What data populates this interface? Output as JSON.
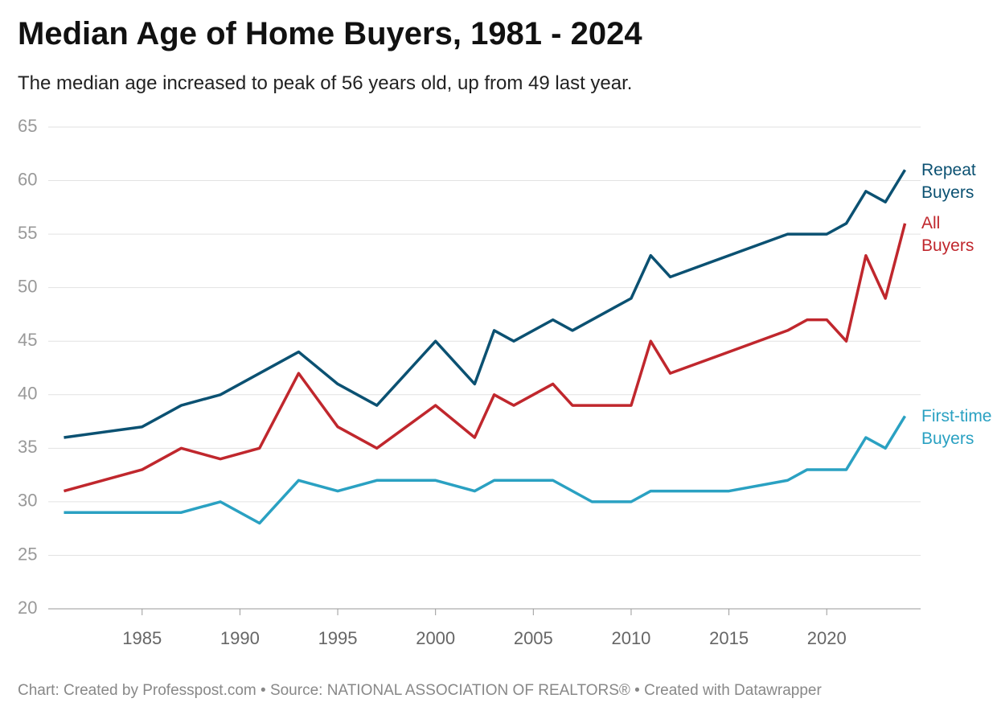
{
  "chart_data": {
    "type": "line",
    "title": "Median Age of Home Buyers, 1981 - 2024",
    "subtitle": "The median age increased to peak of 56 years old, up from 49 last year.",
    "source": "Chart: Created by Professpost.com  • Source: NATIONAL ASSOCIATION OF REALTORS® • Created with Datawrapper",
    "xlim": [
      1980.2,
      2024.8
    ],
    "xticks": [
      1985,
      1990,
      1995,
      2000,
      2005,
      2010,
      2015,
      2020
    ],
    "ylim": [
      20,
      65
    ],
    "yticks": [
      20,
      25,
      30,
      35,
      40,
      45,
      50,
      55,
      60,
      65
    ],
    "grid": true,
    "series": [
      {
        "name": "Repeat Buyers",
        "color": "#0b5172",
        "x": [
          1981,
          1985,
          1987,
          1989,
          1993,
          1995,
          1997,
          2000,
          2002,
          2003,
          2004,
          2006,
          2007,
          2010,
          2011,
          2012,
          2018,
          2020,
          2021,
          2022,
          2023,
          2024
        ],
        "values": [
          36,
          37,
          39,
          40,
          44,
          41,
          39,
          45,
          41,
          46,
          45,
          47,
          46,
          49,
          53,
          51,
          55,
          55,
          56,
          59,
          58,
          61
        ]
      },
      {
        "name": "All Buyers",
        "color": "#c0272d",
        "x": [
          1981,
          1985,
          1987,
          1989,
          1991,
          1993,
          1995,
          1997,
          2000,
          2002,
          2003,
          2004,
          2006,
          2007,
          2010,
          2011,
          2012,
          2018,
          2019,
          2020,
          2021,
          2022,
          2023,
          2024
        ],
        "values": [
          31,
          33,
          35,
          34,
          35,
          42,
          37,
          35,
          39,
          36,
          40,
          39,
          41,
          39,
          39,
          45,
          42,
          46,
          47,
          47,
          45,
          53,
          49,
          56
        ]
      },
      {
        "name": "First-time Buyers",
        "color": "#2aa1c2",
        "x": [
          1981,
          1985,
          1987,
          1989,
          1991,
          1993,
          1995,
          1997,
          2000,
          2002,
          2003,
          2006,
          2008,
          2010,
          2011,
          2015,
          2018,
          2019,
          2021,
          2022,
          2023,
          2024
        ],
        "values": [
          29,
          29,
          29,
          30,
          28,
          32,
          31,
          32,
          32,
          31,
          32,
          32,
          30,
          30,
          31,
          31,
          32,
          33,
          33,
          36,
          35,
          38
        ]
      }
    ]
  }
}
